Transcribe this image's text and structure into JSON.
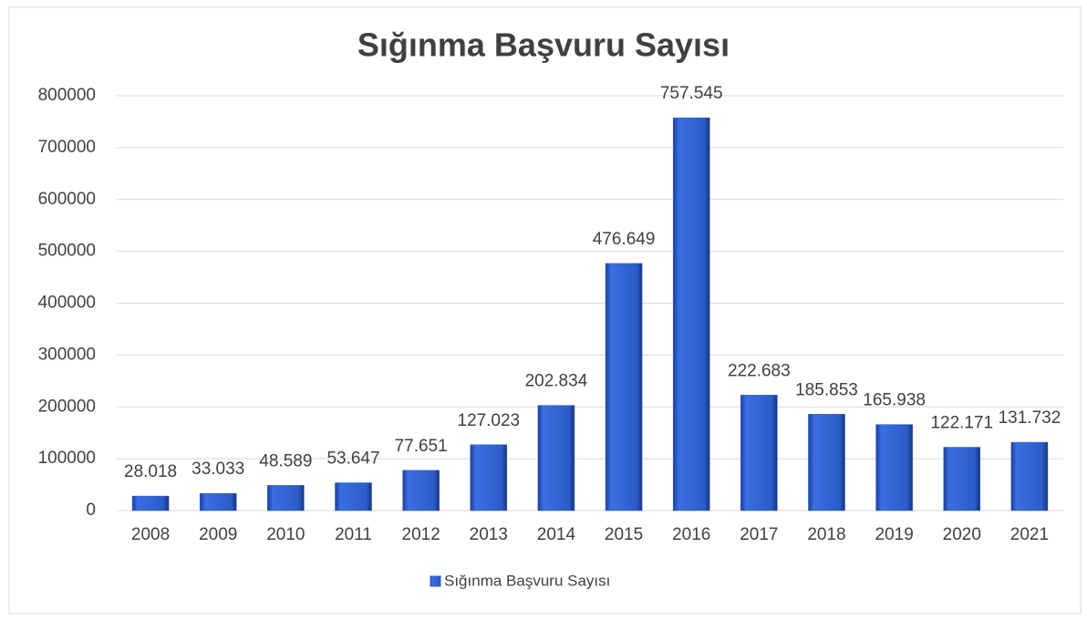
{
  "chart_data": {
    "type": "bar",
    "title": "Sığınma Başvuru Sayısı",
    "categories": [
      "2008",
      "2009",
      "2010",
      "2011",
      "2012",
      "2013",
      "2014",
      "2015",
      "2016",
      "2017",
      "2018",
      "2019",
      "2020",
      "2021"
    ],
    "series": [
      {
        "name": "Sığınma Başvuru Sayısı",
        "color": "#2e5fc9",
        "values": [
          28018,
          33033,
          48589,
          53647,
          77651,
          127023,
          202834,
          476649,
          757545,
          222683,
          185853,
          165938,
          122171,
          131732
        ],
        "value_labels": [
          "28.018",
          "33.033",
          "48.589",
          "53.647",
          "77.651",
          "127.023",
          "202.834",
          "476.649",
          "757.545",
          "222.683",
          "185.853",
          "165.938",
          "122.171",
          "131.732"
        ]
      }
    ],
    "ylim": [
      0,
      800000
    ],
    "yticks": [
      0,
      100000,
      200000,
      300000,
      400000,
      500000,
      600000,
      700000,
      800000
    ],
    "grid": true,
    "legend": "bottom"
  }
}
